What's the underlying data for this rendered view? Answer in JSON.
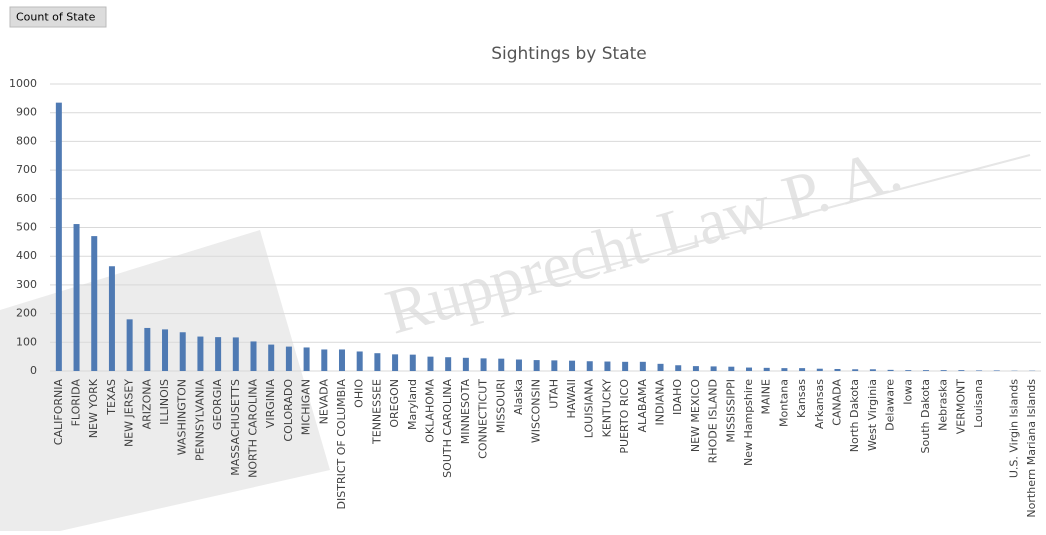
{
  "button": "Count of State",
  "watermark": "Rupprecht Law P. A.",
  "chart_data": {
    "type": "bar",
    "title": "Sightings by State",
    "color": "#4f7ab3",
    "grid": true,
    "categories": [
      "CALIFORNIA",
      "FLORIDA",
      "NEW YORK",
      "TEXAS",
      "NEW JERSEY",
      "ARIZONA",
      "ILLINOIS",
      "WASHINGTON",
      "PENNSYLVANIA",
      "GEORGIA",
      "MASSACHUSETTS",
      "NORTH CAROLINA",
      "VIRGINIA",
      "COLORADO",
      "MICHIGAN",
      "NEVADA",
      "DISTRICT OF COLUMBIA",
      "OHIO",
      "TENNESSEE",
      "OREGON",
      "Maryland",
      "OKLAHOMA",
      "SOUTH CAROLINA",
      "MINNESOTA",
      "CONNECTICUT",
      "MISSOURI",
      "Alaska",
      "WISCONSIN",
      "UTAH",
      "HAWAII",
      "LOUISIANA",
      "KENTUCKY",
      "PUERTO RICO",
      "ALABAMA",
      "INDIANA",
      "IDAHO",
      "NEW MEXICO",
      "RHODE ISLAND",
      "MISSISSIPPI",
      "New Hampshire",
      "MAINE",
      "Montana",
      "Kansas",
      "Arkansas",
      "CANADA",
      "North Dakota",
      "West Virginia",
      "Delaware",
      "Iowa",
      "South Dakota",
      "Nebraska",
      "VERMONT",
      "Louisana",
      null,
      "U.S. Virgin Islands",
      "Northern Mariana Islands"
    ],
    "values": [
      935,
      512,
      470,
      365,
      180,
      150,
      145,
      135,
      120,
      118,
      117,
      103,
      92,
      85,
      82,
      75,
      75,
      68,
      62,
      58,
      57,
      50,
      48,
      46,
      44,
      43,
      40,
      38,
      37,
      36,
      34,
      33,
      32,
      32,
      25,
      20,
      17,
      16,
      15,
      12,
      11,
      10,
      10,
      8,
      7,
      6,
      6,
      4,
      3,
      3,
      3,
      3,
      2,
      2,
      1,
      1
    ],
    "ylim": [
      0,
      1000
    ],
    "yticks": [
      0,
      100,
      200,
      300,
      400,
      500,
      600,
      700,
      800,
      900,
      1000
    ]
  }
}
